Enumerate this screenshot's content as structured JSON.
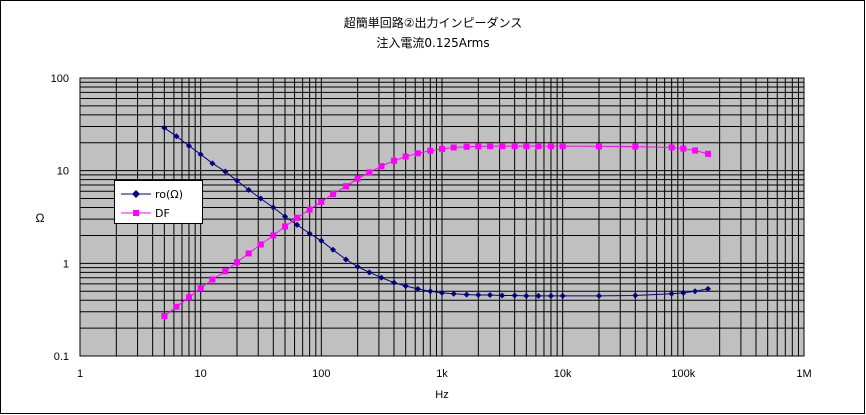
{
  "chart_data": {
    "type": "line",
    "title": "超簡単回路②出力インピーダンス",
    "subtitle": "注入電流0.125Arms",
    "xlabel": "Hz",
    "ylabel": "Ω",
    "x_scale": "log",
    "y_scale": "log",
    "xlim": [
      1,
      1000000
    ],
    "ylim": [
      0.1,
      100
    ],
    "x_tick_labels": [
      "1",
      "10",
      "100",
      "1k",
      "10k",
      "100k",
      "1M"
    ],
    "y_tick_labels": [
      "0.1",
      "1",
      "10",
      "100"
    ],
    "grid": true,
    "plot_background": "#c0c0c0",
    "legend_position": "left",
    "series": [
      {
        "name": "ro(Ω)",
        "color": "#000080",
        "marker": "diamond",
        "x": [
          5,
          6.3,
          8,
          10,
          12.5,
          16,
          20,
          25,
          31.5,
          40,
          50,
          63,
          80,
          100,
          125,
          160,
          200,
          250,
          315,
          400,
          500,
          630,
          800,
          1000,
          1250,
          1600,
          2000,
          2500,
          3150,
          4000,
          5000,
          6300,
          8000,
          10000,
          20000,
          40000,
          80000,
          100000,
          125000,
          160000
        ],
        "y": [
          29,
          23.5,
          18.5,
          15,
          12,
          9.8,
          7.8,
          6.2,
          5,
          4,
          3.2,
          2.6,
          2.1,
          1.75,
          1.4,
          1.1,
          0.92,
          0.8,
          0.7,
          0.62,
          0.57,
          0.53,
          0.5,
          0.48,
          0.47,
          0.46,
          0.455,
          0.455,
          0.45,
          0.45,
          0.445,
          0.445,
          0.445,
          0.445,
          0.445,
          0.45,
          0.47,
          0.48,
          0.5,
          0.53
        ]
      },
      {
        "name": "DF",
        "color": "#ff00ff",
        "marker": "square",
        "x": [
          5,
          6.3,
          8,
          10,
          12.5,
          16,
          20,
          25,
          31.5,
          40,
          50,
          63,
          80,
          100,
          125,
          160,
          200,
          250,
          315,
          400,
          500,
          630,
          800,
          1000,
          1250,
          1600,
          2000,
          2500,
          3150,
          4000,
          5000,
          6300,
          8000,
          10000,
          20000,
          40000,
          80000,
          100000,
          125000,
          160000
        ],
        "y": [
          0.27,
          0.34,
          0.43,
          0.54,
          0.67,
          0.82,
          1.03,
          1.28,
          1.6,
          2,
          2.5,
          3.1,
          3.8,
          4.6,
          5.6,
          6.8,
          8.2,
          9.6,
          11.2,
          12.8,
          14.2,
          15.4,
          16.4,
          17.2,
          17.8,
          18.1,
          18.3,
          18.4,
          18.4,
          18.4,
          18.4,
          18.4,
          18.4,
          18.4,
          18.3,
          18.2,
          17.8,
          17.3,
          16.5,
          15.2
        ]
      }
    ]
  }
}
